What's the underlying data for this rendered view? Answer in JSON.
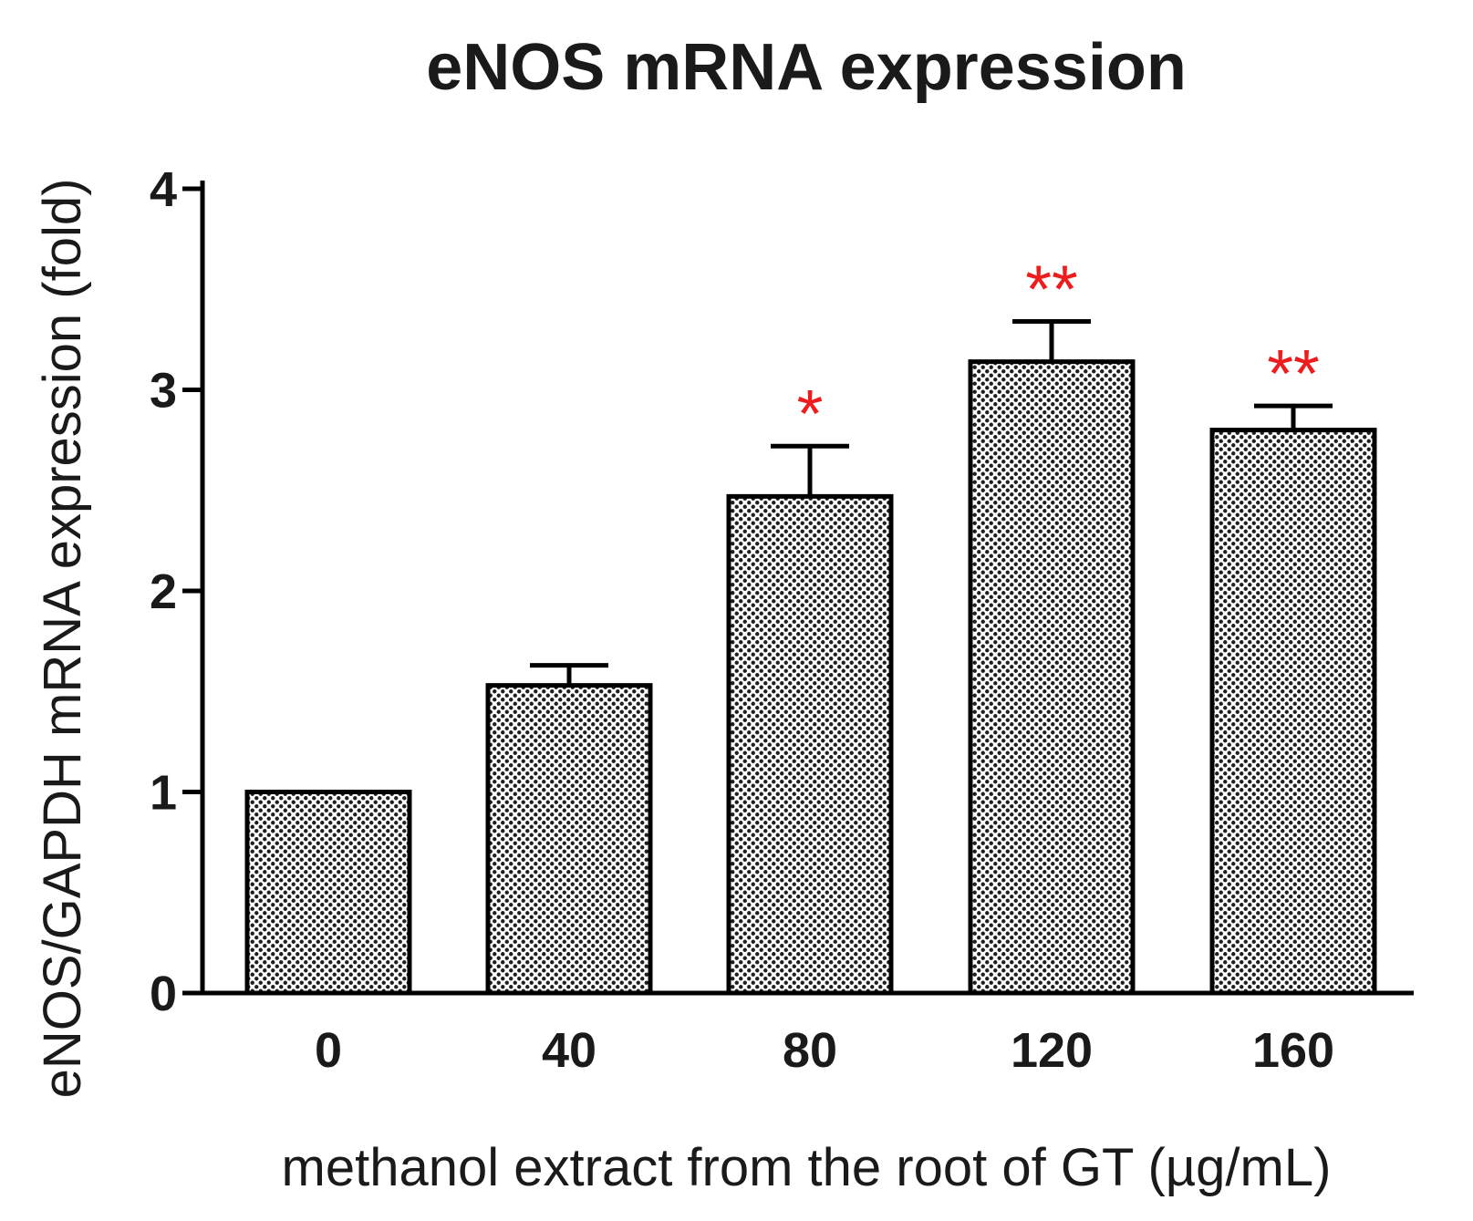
{
  "chart_data": {
    "type": "bar",
    "title": "eNOS mRNA expression",
    "xlabel": "methanol extract from the root of GT (µg/mL)",
    "ylabel": "eNOS/GAPDH mRNA expression (fold)",
    "categories": [
      "0",
      "40",
      "80",
      "120",
      "160"
    ],
    "values": [
      1.0,
      1.53,
      2.47,
      3.14,
      2.8
    ],
    "errors": [
      0,
      0.1,
      0.25,
      0.2,
      0.12
    ],
    "significance": [
      "",
      "",
      "*",
      "**",
      "**"
    ],
    "ylim": [
      0,
      4
    ],
    "yticks": [
      "0",
      "1",
      "2",
      "3",
      "4"
    ],
    "grid": false,
    "colors": {
      "bar_fill": "#9a9a9a",
      "significance": "#ee1c1c",
      "axis": "#000000"
    }
  }
}
